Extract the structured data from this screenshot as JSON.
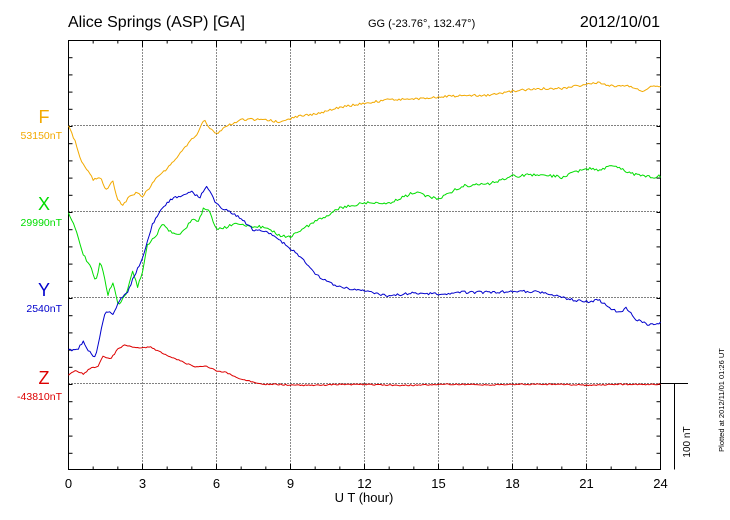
{
  "header": {
    "station": "Alice Springs (ASP)  [GA]",
    "coordinates": "GG (-23.76°, 132.47°)",
    "date": "2012/10/01"
  },
  "plot_note": "Plotted at 2012/11/01 01:26 UT",
  "scale_label": "100 nT",
  "colors": {
    "F": "#f2a900",
    "X": "#00dd00",
    "Y": "#0000cc",
    "Z": "#dd0000"
  },
  "chart_data": {
    "type": "line",
    "title": "Alice Springs (ASP)  [GA]",
    "xlabel": "U T (hour)",
    "ylabel": "",
    "x_ticks": [
      "0",
      "3",
      "6",
      "9",
      "12",
      "15",
      "18",
      "21",
      "24"
    ],
    "xlim": [
      0,
      24
    ],
    "scale_bar_nT": 100,
    "grid": true,
    "units": "nT",
    "series": [
      {
        "name": "F",
        "baseline_label": "53150nT",
        "baseline_nT": 53150,
        "x": [
          0,
          0.25,
          0.5,
          1.0,
          1.3,
          1.5,
          1.8,
          2.0,
          2.2,
          2.5,
          2.8,
          3.0,
          3.3,
          3.6,
          4.0,
          4.4,
          4.8,
          5.2,
          5.5,
          5.7,
          6.0,
          6.3,
          6.6,
          7.0,
          7.5,
          8.0,
          8.5,
          9.0,
          9.5,
          10.0,
          11.0,
          12.0,
          13.0,
          14.0,
          15.0,
          16.0,
          17.0,
          18.0,
          19.0,
          20.0,
          21.0,
          21.5,
          22.0,
          22.5,
          23.0,
          23.3,
          23.6,
          24.0
        ],
        "y": [
          53150,
          53133,
          53110,
          53087,
          53090,
          53075,
          53085,
          53063,
          53058,
          53068,
          53072,
          53068,
          53078,
          53090,
          53100,
          53113,
          53127,
          53140,
          53158,
          53147,
          53140,
          53148,
          53152,
          53157,
          53157,
          53157,
          53154,
          53158,
          53162,
          53163,
          53171,
          53176,
          53180,
          53181,
          53183,
          53185,
          53185,
          53190,
          53193,
          53193,
          53198,
          53200,
          53196,
          53197,
          53193,
          53190,
          53195,
          53196
        ]
      },
      {
        "name": "X",
        "baseline_label": "29990nT",
        "baseline_nT": 29990,
        "x": [
          0,
          0.3,
          0.6,
          0.9,
          1.1,
          1.3,
          1.6,
          1.8,
          2.0,
          2.2,
          2.4,
          2.6,
          2.8,
          3.0,
          3.2,
          3.5,
          3.8,
          4.2,
          4.6,
          5.0,
          5.3,
          5.5,
          5.7,
          6.0,
          6.4,
          6.8,
          7.3,
          7.8,
          8.2,
          8.6,
          9.0,
          9.5,
          10.0,
          11.0,
          12.0,
          13.0,
          14.0,
          15.0,
          16.0,
          17.0,
          18.0,
          19.0,
          20.0,
          21.0,
          21.5,
          22.0,
          22.5,
          23.0,
          23.5,
          24.0
        ],
        "y": [
          29990,
          29970,
          29940,
          29925,
          29910,
          29932,
          29894,
          29907,
          29882,
          29888,
          29898,
          29920,
          29903,
          29920,
          29950,
          29960,
          29975,
          29965,
          29965,
          29980,
          29980,
          29995,
          29990,
          29970,
          29972,
          29977,
          29973,
          29972,
          29968,
          29962,
          29960,
          29970,
          29978,
          29994,
          30000,
          30000,
          30012,
          30005,
          30020,
          30022,
          30031,
          30033,
          30030,
          30040,
          30038,
          30044,
          30038,
          30033,
          30030,
          30031
        ]
      },
      {
        "name": "Y",
        "baseline_label": "2540nT",
        "baseline_nT": 2540,
        "x": [
          0,
          0.3,
          0.6,
          0.9,
          1.1,
          1.3,
          1.5,
          1.8,
          2.1,
          2.4,
          2.7,
          3.0,
          3.4,
          3.8,
          4.2,
          4.6,
          5.0,
          5.3,
          5.6,
          6.0,
          6.5,
          7.0,
          7.5,
          8.0,
          8.5,
          9.0,
          9.5,
          10.0,
          10.5,
          11.0,
          11.5,
          12.0,
          13.0,
          14.0,
          15.0,
          16.0,
          17.0,
          18.0,
          19.0,
          20.0,
          20.5,
          21.0,
          21.5,
          22.0,
          22.3,
          22.6,
          23.0,
          23.5,
          24.0
        ],
        "y": [
          2480,
          2478,
          2488,
          2475,
          2470,
          2500,
          2525,
          2520,
          2538,
          2547,
          2567,
          2585,
          2625,
          2645,
          2655,
          2658,
          2664,
          2655,
          2670,
          2648,
          2640,
          2632,
          2618,
          2617,
          2608,
          2597,
          2585,
          2567,
          2558,
          2552,
          2550,
          2547,
          2542,
          2545,
          2544,
          2546,
          2546,
          2547,
          2547,
          2540,
          2537,
          2535,
          2537,
          2527,
          2522,
          2528,
          2515,
          2508,
          2510
        ]
      },
      {
        "name": "Z",
        "baseline_label": "-43810nT",
        "baseline_nT": -43810,
        "x": [
          0,
          0.3,
          0.6,
          0.9,
          1.2,
          1.4,
          1.7,
          2.0,
          2.3,
          2.6,
          3.0,
          3.3,
          3.6,
          4.0,
          4.4,
          4.8,
          5.2,
          5.6,
          6.0,
          6.4,
          6.8,
          7.2,
          7.6,
          8.0,
          8.5,
          9.0,
          10.0,
          11.0,
          12.0,
          13.0,
          14.0,
          15.0,
          16.0,
          17.0,
          18.0,
          19.0,
          20.0,
          21.0,
          22.0,
          23.0,
          24.0
        ],
        "y": [
          -43800,
          -43795,
          -43799,
          -43792,
          -43790,
          -43778,
          -43782,
          -43770,
          -43765,
          -43768,
          -43769,
          -43767,
          -43772,
          -43777,
          -43782,
          -43787,
          -43791,
          -43790,
          -43795,
          -43797,
          -43803,
          -43806,
          -43810,
          -43811,
          -43811,
          -43812,
          -43812,
          -43811,
          -43811,
          -43812,
          -43812,
          -43811,
          -43811,
          -43812,
          -43811,
          -43811,
          -43811,
          -43812,
          -43811,
          -43811,
          -43811
        ]
      }
    ]
  }
}
